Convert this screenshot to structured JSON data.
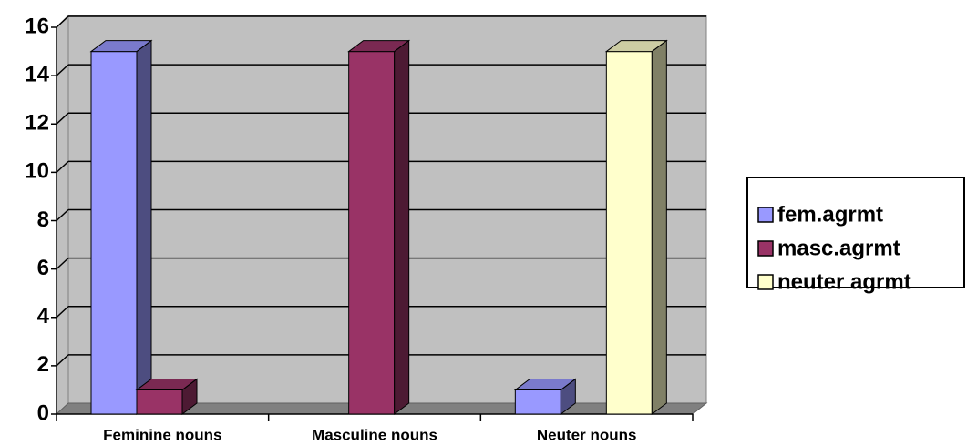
{
  "chart_data": {
    "type": "bar3d",
    "categories": [
      "Feminine nouns",
      "Masculine nouns",
      "Neuter nouns"
    ],
    "series": [
      {
        "name": "fem.agrmt",
        "color": "#9999ff",
        "values": [
          15,
          0,
          1
        ]
      },
      {
        "name": "masc.agrmt",
        "color": "#993366",
        "values": [
          1,
          15,
          0
        ]
      },
      {
        "name": "neuter agrmt",
        "color": "#ffffcc",
        "values": [
          0,
          0,
          15
        ]
      }
    ],
    "ylim": [
      0,
      16
    ],
    "yticks": [
      0,
      2,
      4,
      6,
      8,
      10,
      12,
      14,
      16
    ],
    "grid": true,
    "legend": "right"
  }
}
